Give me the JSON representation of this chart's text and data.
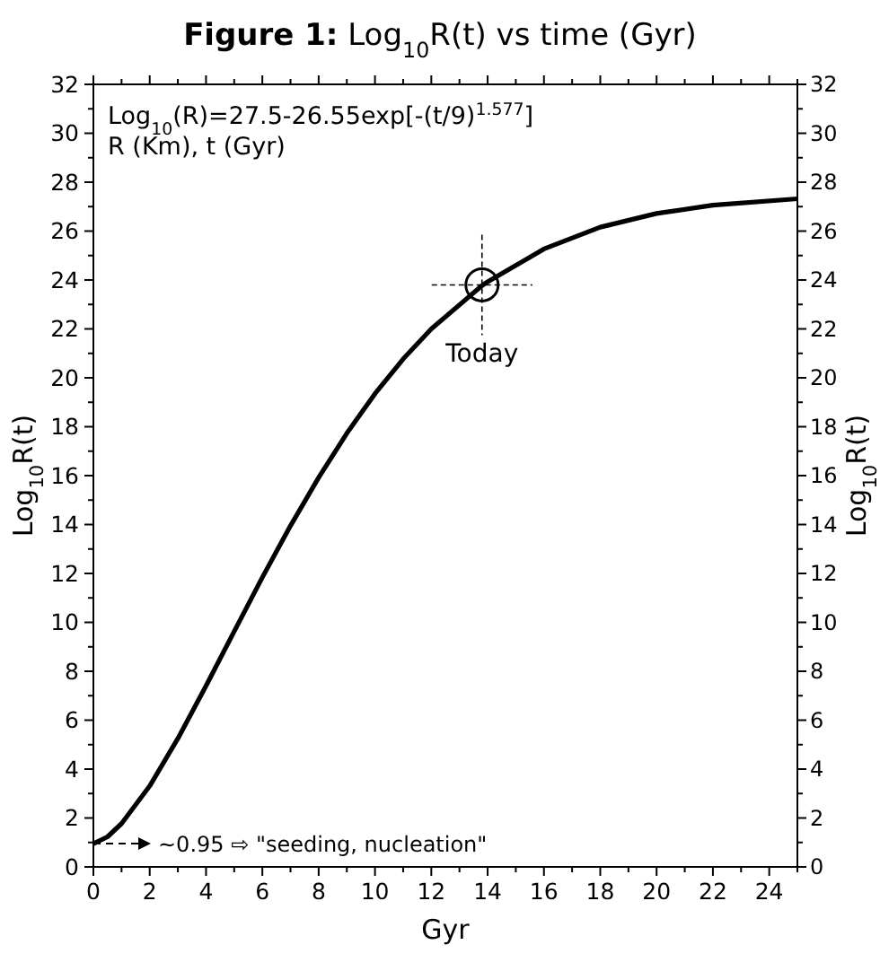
{
  "chart_data": {
    "type": "line",
    "title": "Figure 1: Log$_{10}$R(t) vs time (Gyr)",
    "xlabel": "Gyr",
    "ylabel": "Log$_{10}$R(t)",
    "y2label": "Log$_{10}$R(t)",
    "xlim": [
      0,
      25
    ],
    "xticks": [
      0,
      2,
      4,
      6,
      8,
      10,
      12,
      14,
      16,
      18,
      20,
      22,
      24
    ],
    "ylim": [
      0,
      32
    ],
    "yticks": [
      0,
      2,
      4,
      6,
      8,
      10,
      12,
      14,
      16,
      18,
      20,
      22,
      24,
      26,
      28,
      30,
      32
    ],
    "y2lim": [
      0,
      32
    ],
    "y2ticks": [
      0,
      2,
      4,
      6,
      8,
      10,
      12,
      14,
      16,
      18,
      20,
      22,
      24,
      26,
      28,
      30,
      32
    ],
    "grid": false,
    "series": [
      {
        "color": "#000000",
        "x": [
          0,
          0.5,
          1,
          2,
          3,
          4,
          5,
          6,
          7,
          8,
          9,
          10,
          11,
          12,
          13.8,
          14,
          16,
          18,
          20,
          22,
          25
        ],
        "values": [
          0.95,
          1.23,
          1.77,
          3.31,
          5.25,
          7.4,
          9.63,
          11.84,
          13.95,
          15.92,
          17.73,
          19.35,
          20.77,
          22.0,
          23.77,
          23.93,
          25.27,
          26.16,
          26.72,
          27.06,
          27.32
        ]
      },
      {
        "type": "scatter",
        "marker": "circle",
        "color": "#000000",
        "x": [
          13.8
        ],
        "values": [
          23.8
        ]
      }
    ],
    "annotations": [
      "Log$_{10}$(R)=27.5-26.55exp[-(t/9)$^{1.577}$]",
      "R (Km), t (Gyr)",
      {
        "text": "Today",
        "x": 13.8,
        "y": 23.8
      },
      {
        "text": "~0.95 ⇨ \"seeding, nucleation\"",
        "x": 0,
        "y": 0.95
      }
    ]
  }
}
